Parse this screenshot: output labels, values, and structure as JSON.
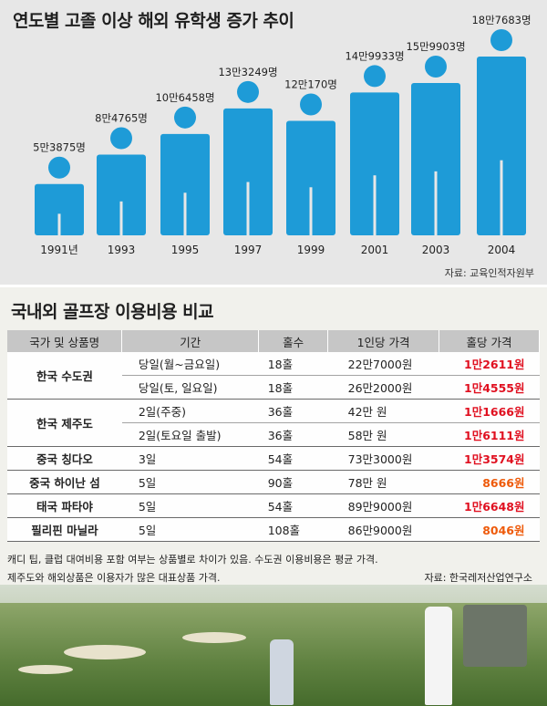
{
  "top_chart": {
    "title": "연도별 고졸 이상 해외 유학생 증가 추이",
    "source": "자료: 교육인적자원부",
    "figure_color": "#1e9bd7"
  },
  "chart_data": {
    "type": "bar",
    "title": "연도별 고졸 이상 해외 유학생 증가 추이",
    "categories": [
      "1991년",
      "1993",
      "1995",
      "1997",
      "1999",
      "2001",
      "2003",
      "2004"
    ],
    "values": [
      53875,
      84765,
      106458,
      133249,
      120170,
      149933,
      159903,
      187683
    ],
    "value_labels": [
      "5만3875명",
      "8만4765명",
      "10만6458명",
      "13만3249명",
      "12만170명",
      "14만9933명",
      "15만9903명",
      "18만7683명"
    ],
    "ylim": [
      0,
      200000
    ]
  },
  "cost_table": {
    "title": "국내외 골프장 이용비용 비교",
    "headers": [
      "국가 및 상품명",
      "기간",
      "홀수",
      "1인당 가격",
      "홀당 가격"
    ],
    "rows": [
      {
        "name": "한국 수도권",
        "period": "당일(월~금요일)",
        "holes": "18홀",
        "price_person": "22만7000원",
        "price_hole": "1만2611원"
      },
      {
        "name": "",
        "period": "당일(토, 일요일)",
        "holes": "18홀",
        "price_person": "26만2000원",
        "price_hole": "1만4555원"
      },
      {
        "name": "한국 제주도",
        "period": "2일(주중)",
        "holes": "36홀",
        "price_person": "42만 원",
        "price_hole": "1만1666원"
      },
      {
        "name": "",
        "period": "2일(토요일 출발)",
        "holes": "36홀",
        "price_person": "58만 원",
        "price_hole": "1만6111원"
      },
      {
        "name": "중국 칭다오",
        "period": "3일",
        "holes": "54홀",
        "price_person": "73만3000원",
        "price_hole": "1만3574원"
      },
      {
        "name": "중국 하이난 섬",
        "period": "5일",
        "holes": "90홀",
        "price_person": "78만 원",
        "price_hole": "8666원"
      },
      {
        "name": "태국 파타야",
        "period": "5일",
        "holes": "54홀",
        "price_person": "89만9000원",
        "price_hole": "1만6648원"
      },
      {
        "name": "필리핀 마닐라",
        "period": "5일",
        "holes": "108홀",
        "price_person": "86만9000원",
        "price_hole": "8046원"
      }
    ],
    "note_line1": "캐디 팁, 클럽 대여비용 포함 여부는 상품별로 차이가 있음. 수도권 이용비용은 평균 가격.",
    "note_line2": "제주도와 해외상품은 이용자가 많은 대표상품 가격.",
    "source": "자료: 한국레저산업연구소",
    "red_color": "#e01020",
    "orange_color": "#ee5a0a"
  }
}
